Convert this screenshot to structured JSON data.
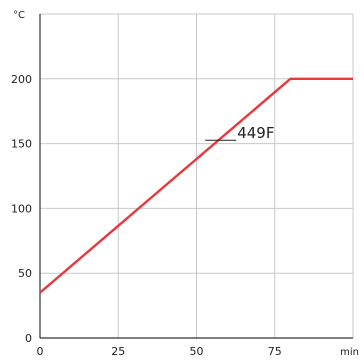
{
  "chart_data": {
    "type": "line",
    "title": "",
    "xlabel": "",
    "ylabel": "",
    "x_unit": "min",
    "y_unit": "°C",
    "xlim": [
      0,
      100
    ],
    "ylim": [
      0,
      250
    ],
    "x_ticks": [
      0,
      25,
      50,
      75
    ],
    "y_ticks": [
      0,
      50,
      100,
      150,
      200
    ],
    "grid": true,
    "legend": "none",
    "series": [
      {
        "color": "#e8383d",
        "x": [
          0,
          80,
          100
        ],
        "y": [
          35,
          200,
          200
        ]
      }
    ],
    "annotations": [
      {
        "text": "449F",
        "x": 63,
        "y": 158
      }
    ]
  }
}
